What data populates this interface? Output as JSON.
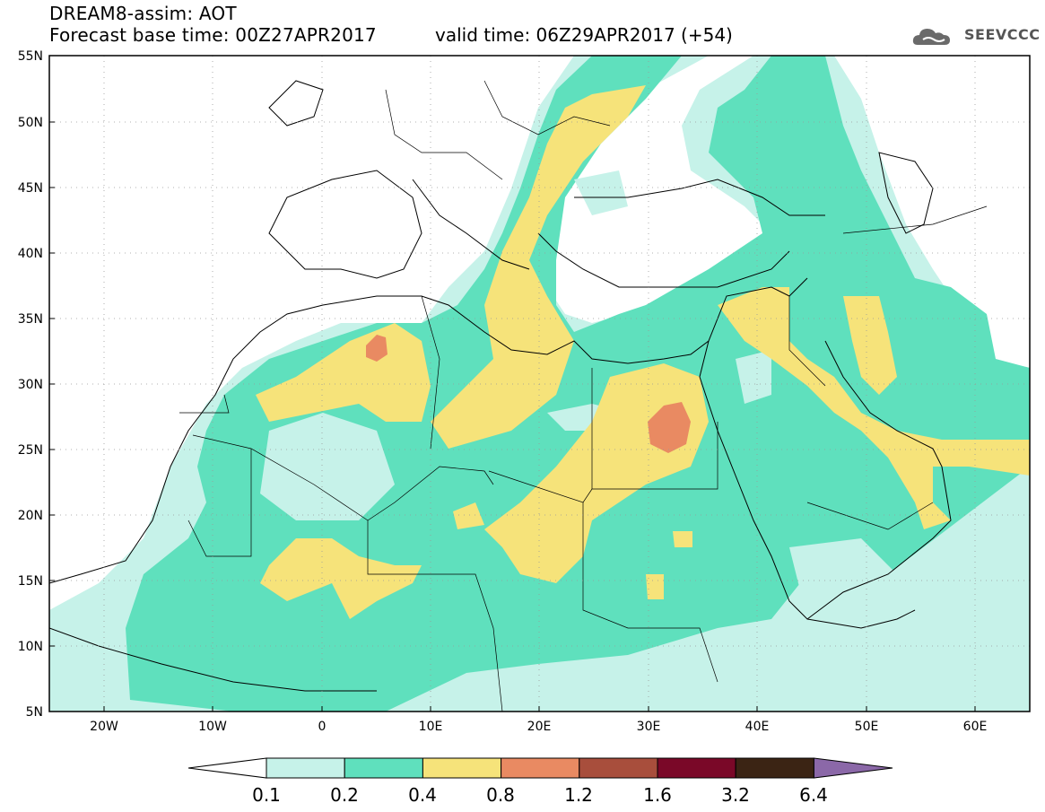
{
  "header": {
    "title": "DREAM8-assim: AOT",
    "base_time": "Forecast base time: 00Z27APR2017",
    "valid_time": "valid time: 06Z29APR2017 (+54)"
  },
  "logo": {
    "text": "SEEVCCC",
    "icon": "cloud-logo-icon"
  },
  "map": {
    "projection": "lat-lon",
    "lon_range": [
      -25,
      65
    ],
    "lat_range": [
      5,
      55
    ],
    "lat_ticks": [
      "5N",
      "10N",
      "15N",
      "20N",
      "25N",
      "30N",
      "35N",
      "40N",
      "45N",
      "50N",
      "55N"
    ],
    "lon_ticks": [
      "20W",
      "10W",
      "0",
      "10E",
      "20E",
      "30E",
      "40E",
      "50E",
      "60E"
    ],
    "grid": true
  },
  "colorbar": {
    "labels": [
      "0.1",
      "0.2",
      "0.4",
      "0.8",
      "1.2",
      "1.6",
      "3.2",
      "6.4"
    ],
    "colors": [
      "#ffffff",
      "#c6f2e9",
      "#5fe0bd",
      "#f6e37a",
      "#e98a62",
      "#a84e3c",
      "#7a0828",
      "#3b2414",
      "#8b68a8"
    ]
  }
}
